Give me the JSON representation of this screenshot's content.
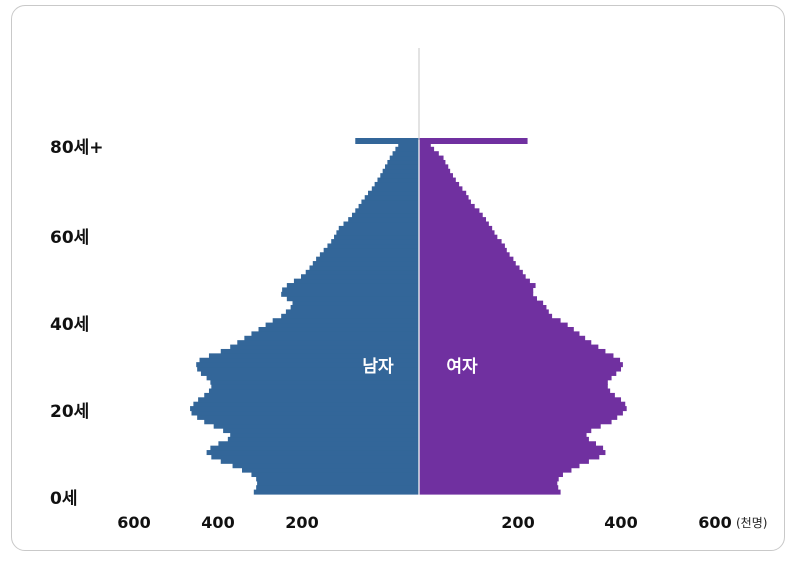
{
  "chart_data": {
    "type": "bar",
    "orientation": "horizontal-population-pyramid",
    "y_tick_labels": [
      "0세",
      "20세",
      "40세",
      "60세",
      "80세+"
    ],
    "x_tick_labels_left": [
      "600",
      "400",
      "200"
    ],
    "x_tick_labels_right": [
      "200",
      "400",
      "600"
    ],
    "x_unit": "(천명)",
    "xlim": [
      0,
      600
    ],
    "ages": [
      0,
      1,
      2,
      3,
      4,
      5,
      6,
      7,
      8,
      9,
      10,
      11,
      12,
      13,
      14,
      15,
      16,
      17,
      18,
      19,
      20,
      21,
      22,
      23,
      24,
      25,
      26,
      27,
      28,
      29,
      30,
      31,
      32,
      33,
      34,
      35,
      36,
      37,
      38,
      39,
      40,
      41,
      42,
      43,
      44,
      45,
      46,
      47,
      48,
      49,
      50,
      51,
      52,
      53,
      54,
      55,
      56,
      57,
      58,
      59,
      60,
      61,
      62,
      63,
      64,
      65,
      66,
      67,
      68,
      69,
      70,
      71,
      72,
      73,
      74,
      75,
      76,
      77,
      78,
      79,
      80
    ],
    "series": [
      {
        "name": "남자",
        "color": "#336699",
        "values": [
          350,
          345,
          343,
          345,
          355,
          375,
          395,
          420,
          440,
          450,
          442,
          425,
          405,
          400,
          415,
          435,
          455,
          470,
          482,
          485,
          478,
          468,
          455,
          445,
          440,
          442,
          450,
          462,
          470,
          472,
          465,
          445,
          420,
          400,
          385,
          370,
          355,
          340,
          325,
          310,
          292,
          282,
          272,
          268,
          280,
          292,
          290,
          280,
          265,
          250,
          240,
          232,
          225,
          218,
          210,
          202,
          194,
          186,
          180,
          175,
          170,
          160,
          150,
          142,
          135,
          128,
          122,
          115,
          108,
          100,
          94,
          88,
          82,
          77,
          72,
          67,
          62,
          56,
          50,
          44,
          135
        ]
      },
      {
        "name": "여자",
        "color": "#7030a0",
        "values": [
          300,
          295,
          293,
          296,
          305,
          323,
          340,
          360,
          382,
          395,
          390,
          375,
          360,
          355,
          365,
          385,
          408,
          420,
          432,
          440,
          437,
          428,
          415,
          405,
          400,
          400,
          408,
          418,
          428,
          432,
          426,
          412,
          395,
          380,
          365,
          352,
          340,
          328,
          315,
          300,
          282,
          275,
          270,
          263,
          250,
          242,
          242,
          247,
          235,
          226,
          220,
          213,
          205,
          200,
          192,
          186,
          182,
          175,
          166,
          160,
          155,
          148,
          142,
          135,
          128,
          118,
          110,
          105,
          100,
          92,
          85,
          78,
          72,
          66,
          62,
          56,
          52,
          42,
          32,
          25,
          230
        ]
      }
    ],
    "inner_labels": {
      "male": "남자",
      "female": "여자"
    }
  }
}
